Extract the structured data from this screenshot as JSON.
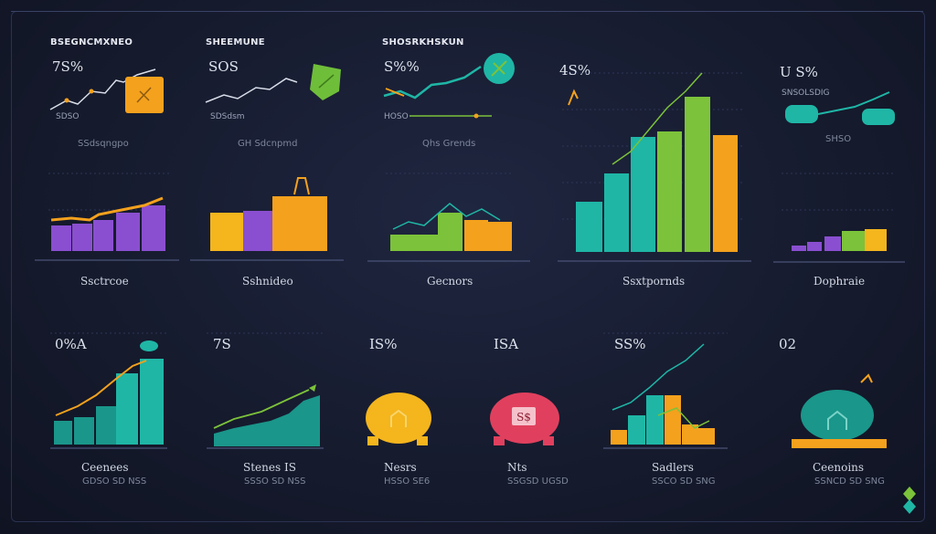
{
  "top_row": [
    {
      "heading": "BSEGNCMXNEO",
      "value": "7S%",
      "caption": "SDSO",
      "sub": "SSdsqngpo"
    },
    {
      "heading": "SHEEMUNE",
      "value": "SOS ",
      "caption": "SDSdsm",
      "sub": "GH Sdcnpmd"
    },
    {
      "heading": "SHOSRKHSKUN",
      "value": "S%% ",
      "caption": "HOSO",
      "sub": "Qhs Grends"
    },
    {
      "heading": "",
      "value": "4S%",
      "caption": "",
      "sub": ""
    },
    {
      "heading": "",
      "value": "U S% ",
      "caption": "SNSOLSDIG",
      "sub": "SHSO"
    }
  ],
  "mid_labels": [
    "Ssctrcoe",
    "Sshnideo",
    "Gecnors",
    "Ssxtpornds",
    "Dophraie"
  ],
  "bottom_row": [
    {
      "value": "0%A",
      "label": "Ceenees",
      "sub": "GDSO SD NSS"
    },
    {
      "value": "7S",
      "label": "Stenes IS",
      "sub": "SSSO SD NSS"
    },
    {
      "value": "IS%",
      "label": "Nesrs",
      "sub": "HSSO SE6"
    },
    {
      "value": "ISA",
      "label": "Nts",
      "sub": "SSGSD UGSD"
    },
    {
      "value": "SS%",
      "label": "Sadlers",
      "sub": "SSCO SD SNG"
    },
    {
      "value": "02",
      "label": "Ceenoins",
      "sub": "SSNCD SD SNG"
    }
  ],
  "icons": {
    "piggy_badge": "S$",
    "lock": "lock-icon"
  },
  "colors": {
    "teal": "#1fb6a6",
    "green": "#7cc23a",
    "orange": "#f4a11d",
    "purple": "#8a4fd0",
    "pink": "#e0405e"
  }
}
